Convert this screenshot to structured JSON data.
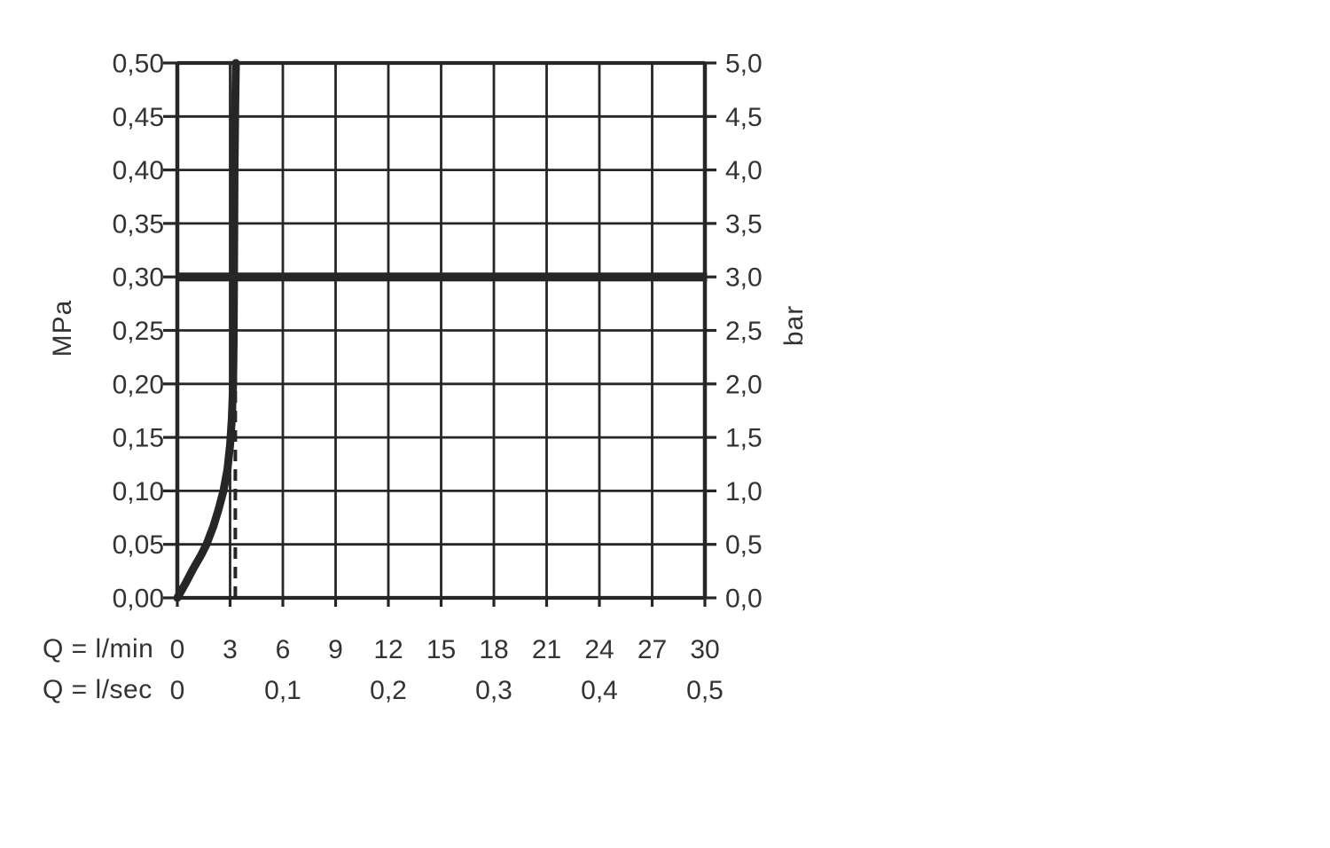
{
  "page": {
    "background": "#ffffff"
  },
  "chart_data": {
    "type": "line",
    "title": "",
    "grid": true,
    "colors": {
      "stroke": "#262626",
      "text": "#333333",
      "background": "#ffffff"
    },
    "axes": {
      "x": {
        "row1_label": "Q = l/min",
        "row2_label": "Q = l/sec",
        "range_lmin": [
          0,
          30
        ],
        "gridline_step_lmin": 3,
        "lmin_ticks": [
          {
            "label": "0",
            "lmin": 0
          },
          {
            "label": "3",
            "lmin": 3
          },
          {
            "label": "6",
            "lmin": 6
          },
          {
            "label": "9",
            "lmin": 9
          },
          {
            "label": "12",
            "lmin": 12
          },
          {
            "label": "15",
            "lmin": 15
          },
          {
            "label": "18",
            "lmin": 18
          },
          {
            "label": "21",
            "lmin": 21
          },
          {
            "label": "24",
            "lmin": 24
          },
          {
            "label": "27",
            "lmin": 27
          },
          {
            "label": "30",
            "lmin": 30
          }
        ],
        "lsec_ticks": [
          {
            "label": "0",
            "lmin": 0
          },
          {
            "label": "0,1",
            "lmin": 6
          },
          {
            "label": "0,2",
            "lmin": 12
          },
          {
            "label": "0,3",
            "lmin": 18
          },
          {
            "label": "0,4",
            "lmin": 24
          },
          {
            "label": "0,5",
            "lmin": 30
          }
        ]
      },
      "y_left": {
        "unit": "MPa",
        "range_mpa": [
          0,
          0.5
        ],
        "gridline_step_mpa": 0.05,
        "ticks": [
          {
            "label": "0,50",
            "mpa": 0.5
          },
          {
            "label": "0,45",
            "mpa": 0.45
          },
          {
            "label": "0,40",
            "mpa": 0.4
          },
          {
            "label": "0,35",
            "mpa": 0.35
          },
          {
            "label": "0,30",
            "mpa": 0.3
          },
          {
            "label": "0,25",
            "mpa": 0.25
          },
          {
            "label": "0,20",
            "mpa": 0.2
          },
          {
            "label": "0,15",
            "mpa": 0.15
          },
          {
            "label": "0,10",
            "mpa": 0.1
          },
          {
            "label": "0,05",
            "mpa": 0.05
          },
          {
            "label": "0,00",
            "mpa": 0.0
          }
        ]
      },
      "y_right": {
        "unit": "bar",
        "ticks": [
          {
            "label": "5,0",
            "mpa": 0.5
          },
          {
            "label": "4,5",
            "mpa": 0.45
          },
          {
            "label": "4,0",
            "mpa": 0.4
          },
          {
            "label": "3,5",
            "mpa": 0.35
          },
          {
            "label": "3,0",
            "mpa": 0.3
          },
          {
            "label": "2,5",
            "mpa": 0.25
          },
          {
            "label": "2,0",
            "mpa": 0.2
          },
          {
            "label": "1,5",
            "mpa": 0.15
          },
          {
            "label": "1,0",
            "mpa": 0.1
          },
          {
            "label": "0,5",
            "mpa": 0.05
          },
          {
            "label": "0,0",
            "mpa": 0.0
          }
        ]
      }
    },
    "series": [
      {
        "name": "flow-characteristic-curve",
        "type": "curve",
        "points_lmin_mpa": [
          [
            0,
            0
          ],
          [
            0.45,
            0.013
          ],
          [
            0.9,
            0.027
          ],
          [
            1.35,
            0.04
          ],
          [
            1.66,
            0.05
          ],
          [
            2.05,
            0.067
          ],
          [
            2.35,
            0.083
          ],
          [
            2.62,
            0.1
          ],
          [
            2.85,
            0.12
          ],
          [
            3.0,
            0.143
          ],
          [
            3.1,
            0.168
          ],
          [
            3.17,
            0.2
          ],
          [
            3.2,
            0.24
          ],
          [
            3.22,
            0.3
          ],
          [
            3.25,
            0.4
          ],
          [
            3.29,
            0.46
          ],
          [
            3.33,
            0.5
          ]
        ]
      },
      {
        "name": "pressure-reference-line",
        "type": "horizontal-line",
        "mpa": 0.3
      },
      {
        "name": "flow-reference-dashed-line",
        "type": "vertical-dashed-line",
        "lmin": 3.3,
        "mpa_from": 0.0,
        "mpa_to": 0.28
      }
    ]
  }
}
